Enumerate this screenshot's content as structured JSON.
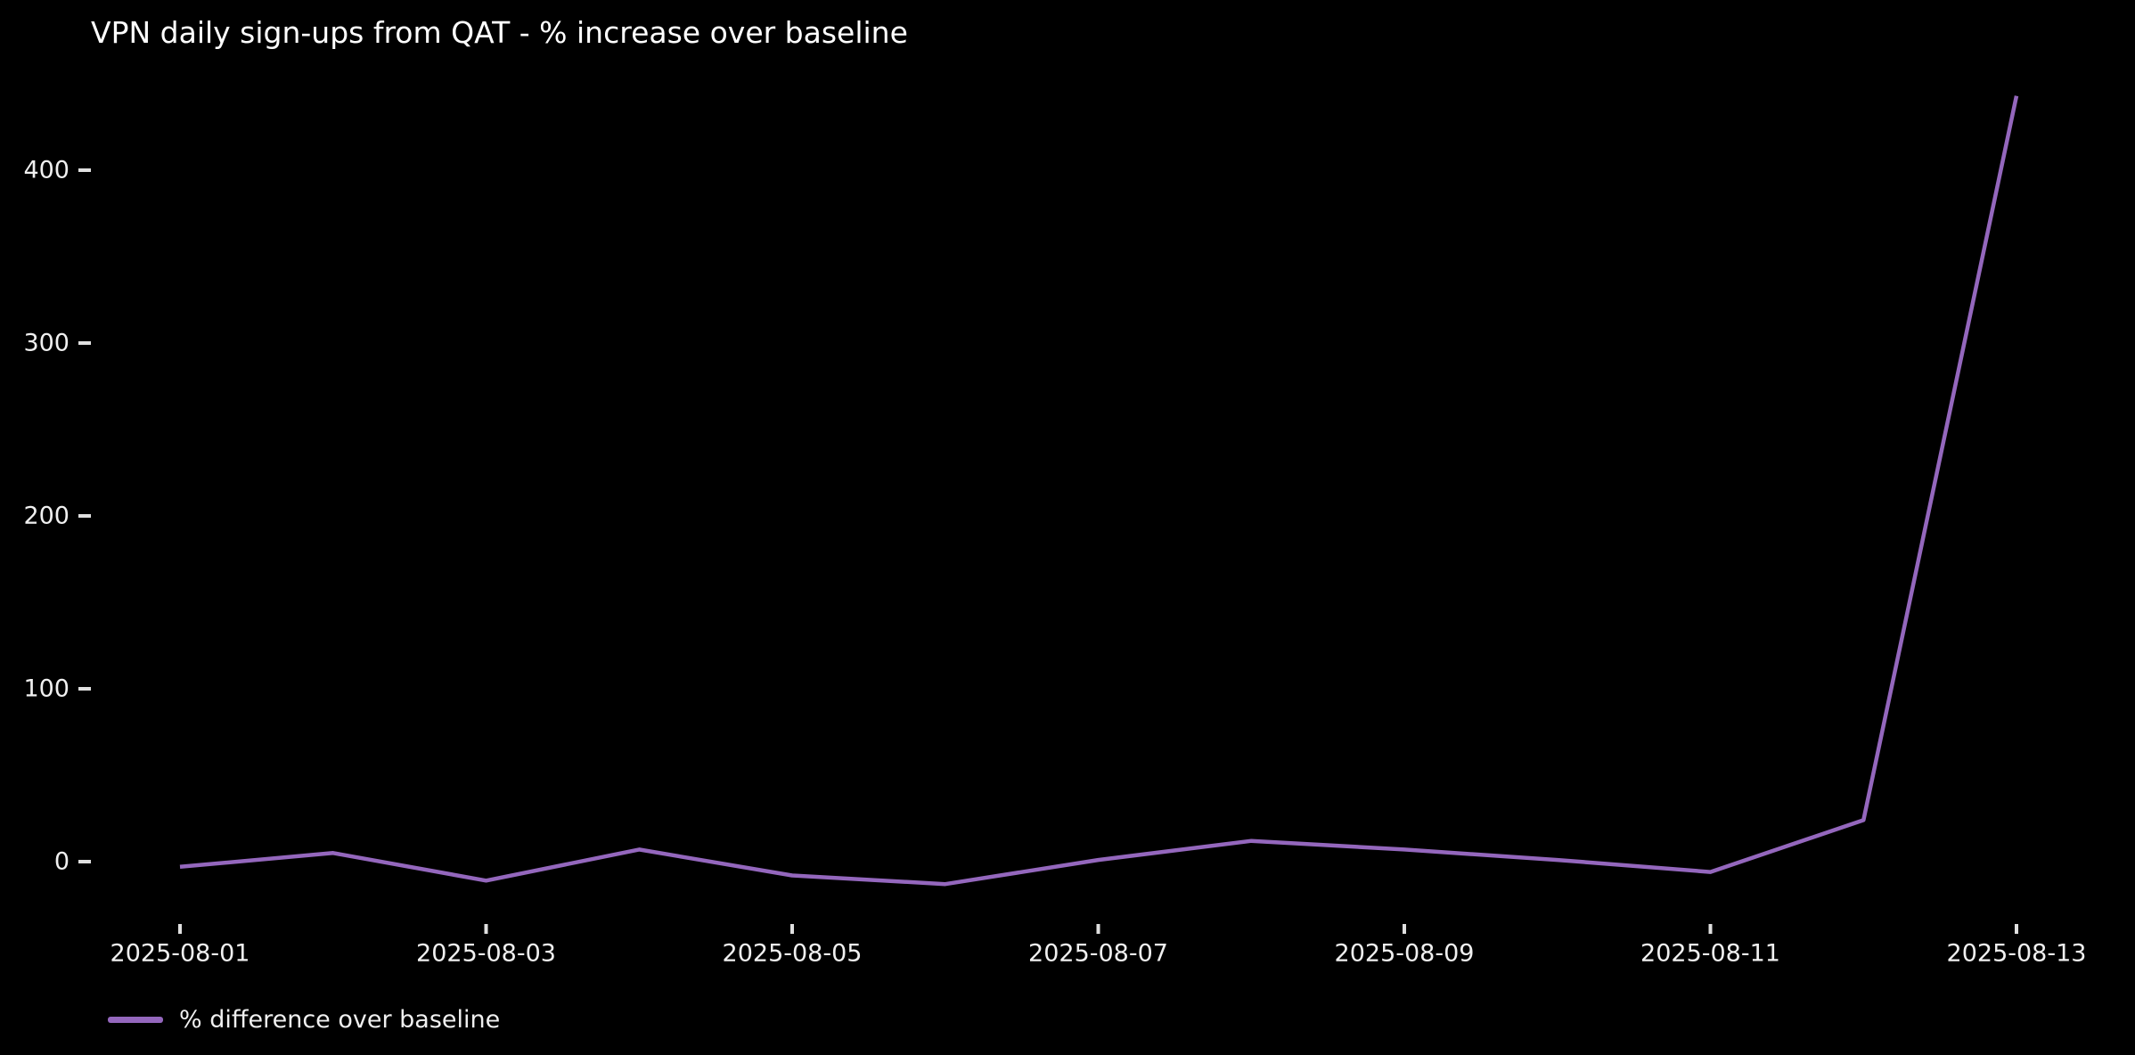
{
  "title": "VPN daily sign-ups from QAT - % increase over baseline",
  "legend": {
    "label": "% difference over baseline"
  },
  "colors": {
    "background": "#000000",
    "line": "#9467bd",
    "title_text": "#ffffff",
    "tick_label_text": "#f0f0f0",
    "tick_mark": "#e0e0e0"
  },
  "chart_data": {
    "type": "line",
    "title": "VPN daily sign-ups from QAT - % increase over baseline",
    "xlabel": "",
    "ylabel": "",
    "x": [
      "2025-08-01",
      "2025-08-02",
      "2025-08-03",
      "2025-08-04",
      "2025-08-05",
      "2025-08-06",
      "2025-08-07",
      "2025-08-08",
      "2025-08-09",
      "2025-08-10",
      "2025-08-11",
      "2025-08-12",
      "2025-08-13"
    ],
    "series": [
      {
        "name": "% difference over baseline",
        "color": "#9467bd",
        "values": [
          -3,
          5,
          -11,
          7,
          -8,
          -13,
          1,
          12,
          7,
          1,
          -6,
          24,
          443
        ]
      }
    ],
    "yticks": [
      0,
      100,
      200,
      300,
      400
    ],
    "xtick_labels": [
      "2025-08-01",
      "2025-08-03",
      "2025-08-05",
      "2025-08-07",
      "2025-08-09",
      "2025-08-11",
      "2025-08-13"
    ],
    "ylim": [
      -36,
      467
    ],
    "grid": false,
    "background": "black",
    "legend_position": "lower-left"
  }
}
